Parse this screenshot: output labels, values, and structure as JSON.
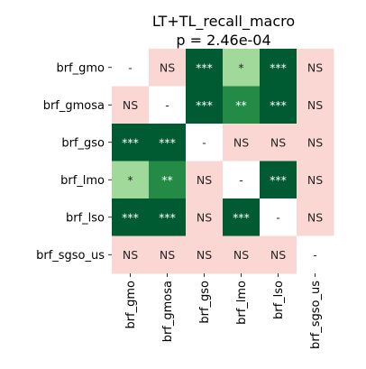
{
  "chart_data": {
    "type": "heatmap",
    "title": "LT+TL_recall_macro",
    "subtitle": "p = 2.46e-04",
    "row_labels": [
      "brf_gmo",
      "brf_gmosa",
      "brf_gso",
      "brf_lmo",
      "brf_lso",
      "brf_sgso_us"
    ],
    "col_labels": [
      "brf_gmo",
      "brf_gmosa",
      "brf_gso",
      "brf_lmo",
      "brf_lso",
      "brf_sgso_us"
    ],
    "cells": [
      [
        "-",
        "NS",
        "***",
        "*",
        "***",
        "NS"
      ],
      [
        "NS",
        "-",
        "***",
        "**",
        "***",
        "NS"
      ],
      [
        "***",
        "***",
        "-",
        "NS",
        "NS",
        "NS"
      ],
      [
        "*",
        "**",
        "NS",
        "-",
        "***",
        "NS"
      ],
      [
        "***",
        "***",
        "NS",
        "***",
        "-",
        "NS"
      ],
      [
        "NS",
        "NS",
        "NS",
        "NS",
        "NS",
        "-"
      ]
    ],
    "colors": {
      "***": "#005a32",
      "**": "#238b45",
      "*": "#a1d99b",
      "NS": "#fbd7d3",
      "-": "#ffffff"
    },
    "text_colors": {
      "***": "#ffffff",
      "**": "#ffffff",
      "*": "#262626",
      "NS": "#262626",
      "-": "#262626"
    },
    "grid": false,
    "legend": "none"
  }
}
